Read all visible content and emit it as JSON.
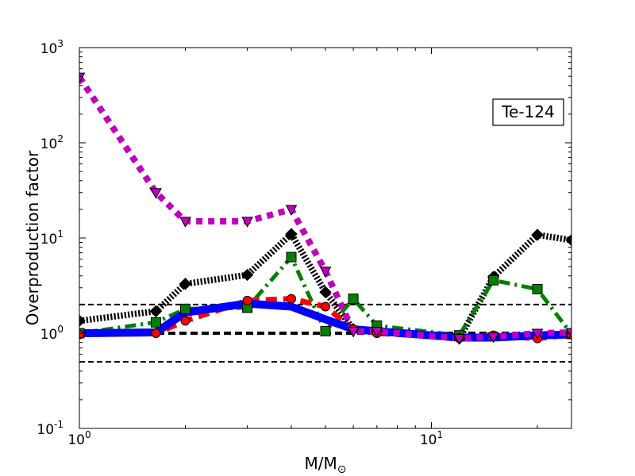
{
  "chart_data": {
    "type": "line",
    "xlabel_main": "M/M",
    "xlabel_sub": "⊙",
    "ylabel": "Overproduction factor",
    "xscale": "log",
    "yscale": "log",
    "xlim": [
      1,
      25
    ],
    "ylim": [
      0.1,
      1000
    ],
    "grid": false,
    "annotation": "Te-124",
    "x_ticks": [
      {
        "value": 1,
        "base": "10",
        "exp": "0"
      },
      {
        "value": 10,
        "base": "10",
        "exp": "1"
      }
    ],
    "y_ticks": [
      {
        "value": 0.1,
        "base": "10",
        "exp": "-1"
      },
      {
        "value": 1,
        "base": "10",
        "exp": "0"
      },
      {
        "value": 10,
        "base": "10",
        "exp": "1"
      },
      {
        "value": 100,
        "base": "10",
        "exp": "2"
      },
      {
        "value": 1000,
        "base": "10",
        "exp": "3"
      }
    ],
    "reference_lines": [
      {
        "y": 0.5,
        "color": "#000000",
        "style": "dashed",
        "width": 2
      },
      {
        "y": 1.0,
        "color": "#000000",
        "style": "dashed",
        "width": 4
      },
      {
        "y": 2.0,
        "color": "#000000",
        "style": "dashed",
        "width": 2
      }
    ],
    "series": [
      {
        "color": "#000000",
        "style": "dotted",
        "marker": "diamond",
        "x": [
          1,
          1.65,
          2,
          3,
          4,
          5,
          6,
          7,
          12,
          15,
          20,
          25
        ],
        "y": [
          1.35,
          1.7,
          3.3,
          4.1,
          11.0,
          2.7,
          1.1,
          1.05,
          0.88,
          3.9,
          10.8,
          9.5
        ]
      },
      {
        "color": "#008000",
        "style": "dashdot",
        "marker": "square",
        "x": [
          1,
          1.65,
          2,
          3,
          4,
          5,
          6,
          7,
          12,
          15,
          20,
          25
        ],
        "y": [
          1.0,
          1.3,
          1.8,
          1.85,
          6.3,
          1.05,
          2.3,
          1.2,
          0.95,
          3.6,
          2.9,
          0.98
        ]
      },
      {
        "color": "#ff0000",
        "style": "dashed",
        "marker": "circle",
        "x": [
          1,
          1.65,
          2,
          3,
          4,
          5,
          6,
          7,
          12,
          15,
          20,
          25
        ],
        "y": [
          0.97,
          1.0,
          1.35,
          2.2,
          2.3,
          1.9,
          1.1,
          1.0,
          0.9,
          0.95,
          0.88,
          0.97
        ]
      },
      {
        "color": "#0000ff",
        "style": "solid",
        "marker": "none",
        "x": [
          1,
          1.65,
          2,
          3,
          4,
          5,
          6,
          7,
          12,
          15,
          20,
          25
        ],
        "y": [
          1.0,
          1.02,
          1.65,
          2.05,
          1.9,
          1.4,
          1.1,
          1.05,
          0.9,
          0.9,
          0.95,
          0.97
        ]
      },
      {
        "color": "#bf00bf",
        "style": "dotted",
        "marker": "triangle-down",
        "x": [
          1,
          1.65,
          2,
          3,
          4,
          5,
          6,
          7,
          12,
          15,
          20,
          25
        ],
        "y": [
          490,
          30,
          15,
          15,
          20,
          4.5,
          1.05,
          1.05,
          0.88,
          0.92,
          1.0,
          1.02
        ]
      }
    ]
  }
}
